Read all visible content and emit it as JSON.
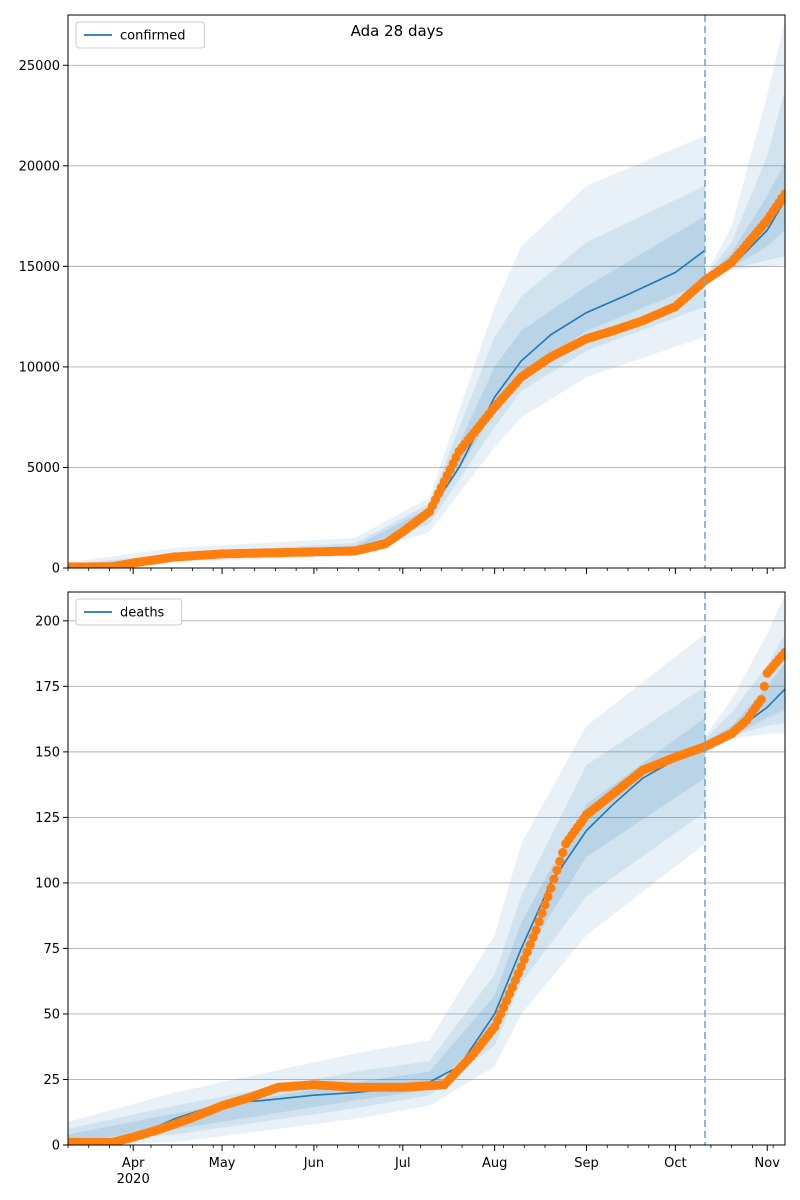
{
  "figure": {
    "title": "Ada 28 days",
    "x_labels": [
      "Apr",
      "May",
      "Jun",
      "Jul",
      "Aug",
      "Sep",
      "Oct",
      "Nov"
    ],
    "x_year_label": "2020",
    "forecast_line_date": "Oct 11",
    "colors": {
      "model": "#1f77b4",
      "observed": "#ff7f0e",
      "band": "#1f77b4",
      "grid": "#b0b0b0",
      "vline": "#6fa8dc"
    }
  },
  "chart_data": [
    {
      "type": "line",
      "legend": "confirmed",
      "legend_position": "top-left",
      "grid": "horizontal",
      "ylim": [
        0,
        27500
      ],
      "yticks": [
        0,
        5000,
        10000,
        15000,
        20000,
        25000
      ],
      "series": [
        {
          "name": "confirmed",
          "kind": "model-median",
          "x": [
            "Mar 1",
            "Mar 15",
            "Mar 31",
            "Apr 15",
            "May 1",
            "May 15",
            "Jun 1",
            "Jun 15",
            "Jun 25",
            "Jul 1",
            "Jul 10",
            "Jul 20",
            "Aug 1",
            "Aug 10",
            "Aug 20",
            "Sep 1",
            "Sep 15",
            "Oct 1",
            "Oct 11"
          ],
          "y": [
            0,
            0,
            200,
            500,
            700,
            800,
            900,
            1000,
            1400,
            1800,
            2800,
            5000,
            8500,
            10300,
            11600,
            12700,
            13600,
            14700,
            15800
          ]
        },
        {
          "name": "confirmed",
          "kind": "model-median-projection",
          "x": [
            "Oct 11",
            "Oct 20",
            "Nov 1",
            "Nov 7"
          ],
          "y": [
            14300,
            15000,
            16800,
            18300
          ]
        },
        {
          "name": "observed",
          "kind": "observed-points",
          "x": [
            "Mar 1",
            "Mar 15",
            "Mar 25",
            "Apr 1",
            "Apr 15",
            "May 1",
            "May 15",
            "Jun 1",
            "Jun 15",
            "Jun 25",
            "Jul 1",
            "Jul 10",
            "Jul 20",
            "Aug 1",
            "Aug 10",
            "Aug 20",
            "Sep 1",
            "Sep 10",
            "Sep 20",
            "Oct 1",
            "Oct 11",
            "Oct 20",
            "Nov 1",
            "Nov 7"
          ],
          "y": [
            50,
            50,
            60,
            250,
            550,
            700,
            750,
            800,
            850,
            1200,
            1800,
            2800,
            5800,
            8000,
            9500,
            10500,
            11400,
            11800,
            12300,
            13000,
            14300,
            15200,
            17300,
            18600
          ]
        }
      ],
      "bands": [
        {
          "level": "outer",
          "x": [
            "Mar 1",
            "Apr 15",
            "Jun 15",
            "Jul 10",
            "Aug 1",
            "Aug 10",
            "Sep 1",
            "Oct 11"
          ],
          "lower": [
            0,
            300,
            600,
            1800,
            6000,
            7500,
            9500,
            11500
          ],
          "upper": [
            100,
            1000,
            1500,
            3500,
            13000,
            16000,
            19000,
            21500
          ]
        },
        {
          "level": "mid",
          "x": [
            "Mar 1",
            "Apr 15",
            "Jun 15",
            "Jul 10",
            "Aug 1",
            "Aug 10",
            "Sep 1",
            "Oct 11"
          ],
          "lower": [
            0,
            400,
            800,
            2200,
            7000,
            8800,
            10800,
            13000
          ],
          "upper": [
            60,
            700,
            1250,
            3200,
            11500,
            13500,
            16200,
            19000
          ]
        },
        {
          "level": "inner",
          "x": [
            "Mar 1",
            "Apr 15",
            "Jun 15",
            "Jul 10",
            "Aug 1",
            "Aug 10",
            "Sep 1",
            "Oct 11"
          ],
          "lower": [
            0,
            450,
            900,
            2500,
            7800,
            9500,
            11800,
            14200
          ],
          "upper": [
            30,
            600,
            1100,
            3000,
            10000,
            11800,
            14000,
            17500
          ]
        },
        {
          "level": "outer",
          "x": [
            "Oct 11",
            "Oct 20",
            "Nov 1",
            "Nov 7"
          ],
          "lower": [
            14100,
            14800,
            15000,
            15100
          ],
          "upper": [
            14500,
            17000,
            23500,
            27200
          ]
        },
        {
          "level": "mid",
          "x": [
            "Oct 11",
            "Oct 20",
            "Nov 1",
            "Nov 7"
          ],
          "lower": [
            14150,
            14900,
            15300,
            15500
          ],
          "upper": [
            14450,
            16200,
            20500,
            23800
          ]
        },
        {
          "level": "inner",
          "x": [
            "Oct 11",
            "Oct 20",
            "Nov 1",
            "Nov 7"
          ],
          "lower": [
            14200,
            14950,
            16000,
            16800
          ],
          "upper": [
            14400,
            15700,
            18500,
            20200
          ]
        }
      ]
    },
    {
      "type": "line",
      "legend": "deaths",
      "legend_position": "top-left",
      "grid": "horizontal",
      "ylim": [
        0,
        211
      ],
      "yticks": [
        0,
        25,
        50,
        75,
        100,
        125,
        150,
        175,
        200
      ],
      "series": [
        {
          "name": "deaths",
          "kind": "model-median",
          "x": [
            "Mar 1",
            "Mar 25",
            "Apr 1",
            "Apr 15",
            "May 1",
            "May 15",
            "Jun 1",
            "Jun 15",
            "Jul 1",
            "Jul 10",
            "Jul 20",
            "Aug 1",
            "Aug 10",
            "Aug 20",
            "Sep 1",
            "Sep 10",
            "Sep 20",
            "Oct 1",
            "Oct 11"
          ],
          "y": [
            0,
            0,
            3,
            10,
            16,
            17,
            19,
            20,
            22,
            24,
            30,
            50,
            75,
            100,
            120,
            130,
            140,
            147,
            153
          ]
        },
        {
          "name": "deaths",
          "kind": "model-median-projection",
          "x": [
            "Oct 11",
            "Oct 20",
            "Nov 1",
            "Nov 7"
          ],
          "y": [
            153,
            157,
            167,
            174
          ]
        },
        {
          "name": "observed",
          "kind": "observed-points",
          "x": [
            "Mar 1",
            "Mar 25",
            "Apr 1",
            "Apr 10",
            "Apr 20",
            "May 1",
            "May 10",
            "May 20",
            "Jun 1",
            "Jun 15",
            "Jul 1",
            "Jul 15",
            "Jul 25",
            "Aug 1",
            "Aug 5",
            "Aug 10",
            "Aug 15",
            "Aug 20",
            "Aug 25",
            "Sep 1",
            "Sep 10",
            "Sep 20",
            "Oct 1",
            "Oct 11",
            "Oct 20",
            "Oct 25",
            "Oct 30",
            "Nov 1",
            "Nov 7"
          ],
          "y": [
            1,
            1,
            3,
            6,
            10,
            15,
            18,
            22,
            23,
            22,
            22,
            23,
            35,
            45,
            55,
            68,
            82,
            98,
            115,
            126,
            134,
            143,
            148,
            152,
            157,
            162,
            170,
            180,
            188
          ]
        }
      ],
      "bands": [
        {
          "level": "outer",
          "x": [
            "Mar 1",
            "Apr 15",
            "Jun 15",
            "Jul 10",
            "Aug 1",
            "Aug 10",
            "Sep 1",
            "Oct 11"
          ],
          "lower": [
            0,
            1,
            10,
            15,
            30,
            50,
            80,
            115
          ],
          "upper": [
            6,
            20,
            35,
            40,
            80,
            115,
            160,
            195
          ]
        },
        {
          "level": "mid",
          "x": [
            "Mar 1",
            "Apr 15",
            "Jun 15",
            "Jul 10",
            "Aug 1",
            "Aug 10",
            "Sep 1",
            "Oct 11"
          ],
          "lower": [
            0,
            4,
            14,
            19,
            38,
            62,
            95,
            127
          ],
          "upper": [
            4,
            15,
            28,
            32,
            65,
            95,
            145,
            175
          ]
        },
        {
          "level": "inner",
          "x": [
            "Mar 1",
            "Apr 15",
            "Jun 15",
            "Jul 10",
            "Aug 1",
            "Aug 10",
            "Sep 1",
            "Oct 11"
          ],
          "lower": [
            0,
            6,
            17,
            21,
            45,
            70,
            110,
            140
          ],
          "upper": [
            2,
            12,
            24,
            28,
            57,
            85,
            130,
            163
          ]
        },
        {
          "level": "outer",
          "x": [
            "Oct 11",
            "Oct 20",
            "Nov 1",
            "Nov 7"
          ],
          "lower": [
            150,
            155,
            157,
            157
          ],
          "upper": [
            156,
            170,
            195,
            210
          ]
        },
        {
          "level": "mid",
          "x": [
            "Oct 11",
            "Oct 20",
            "Nov 1",
            "Nov 7"
          ],
          "lower": [
            151,
            156,
            160,
            161
          ],
          "upper": [
            155,
            165,
            183,
            195
          ]
        },
        {
          "level": "inner",
          "x": [
            "Oct 11",
            "Oct 20",
            "Nov 1",
            "Nov 7"
          ],
          "lower": [
            152,
            156,
            163,
            166
          ],
          "upper": [
            154,
            160,
            175,
            184
          ]
        }
      ]
    }
  ]
}
